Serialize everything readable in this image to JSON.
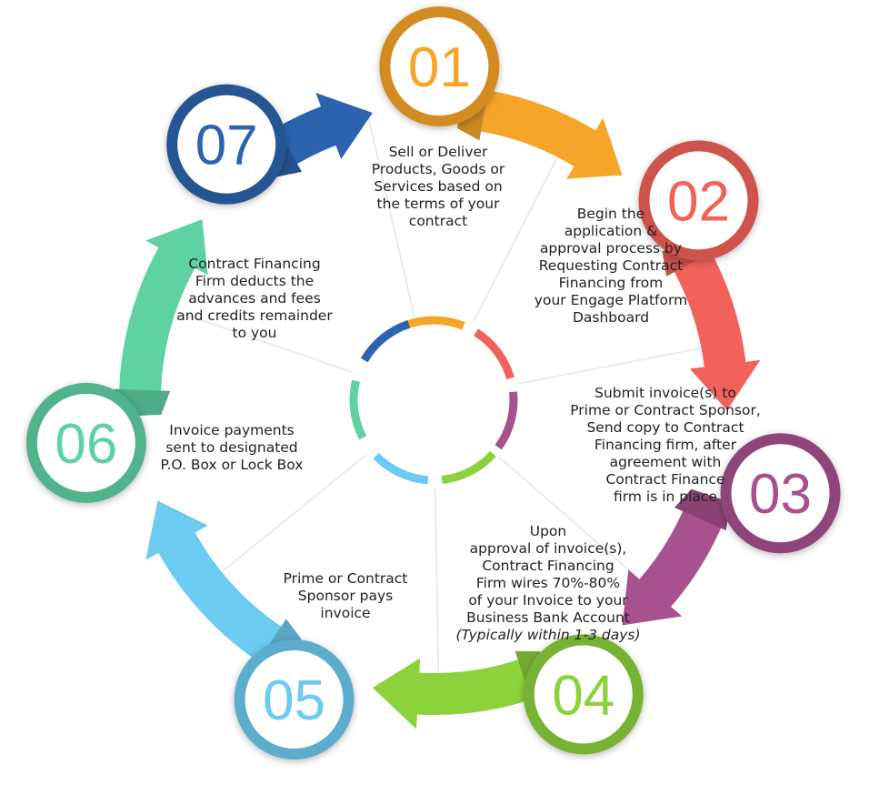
{
  "steps": [
    {
      "number": "01",
      "color": "#F7A529",
      "text_lines": [
        "Sell or Deliver",
        "Products, Goods or",
        "Services based on",
        "the terms of your",
        "contract"
      ]
    },
    {
      "number": "02",
      "color": "#F2615A",
      "text_lines": [
        "Begin the",
        "application &",
        "approval process by",
        "Requesting  Contract",
        "Financing  from",
        "your Engage Platform",
        "Dashboard"
      ]
    },
    {
      "number": "03",
      "color": "#A8518F",
      "text_lines": [
        "Submit invoice(s) to",
        "Prime or Contract Sponsor,",
        "Send copy to Contract",
        "Financing firm, after",
        "agreement  with",
        "Contract Finance",
        "firm is in place"
      ]
    },
    {
      "number": "04",
      "color": "#8CD23C",
      "text_lines": [
        "Upon",
        "approval of invoice(s),",
        "Contract Financing",
        "Firm wires  70%-80%",
        "of your Invoice to your",
        "Business Bank Account"
      ],
      "note": "(Typically within 1-3 days)"
    },
    {
      "number": "05",
      "color": "#6CCBF1",
      "text_lines": [
        "Prime or Contract",
        "Sponsor pays",
        "invoice"
      ]
    },
    {
      "number": "06",
      "color": "#5FD2A4",
      "text_lines": [
        "Invoice payments",
        "sent to designated",
        "P.O. Box or Lock Box"
      ]
    },
    {
      "number": "07",
      "color": "#2B63AE",
      "text_lines": [
        "Contract Financing",
        "Firm deducts the",
        "advances and fees",
        "and credits remainder",
        "to you"
      ]
    }
  ]
}
